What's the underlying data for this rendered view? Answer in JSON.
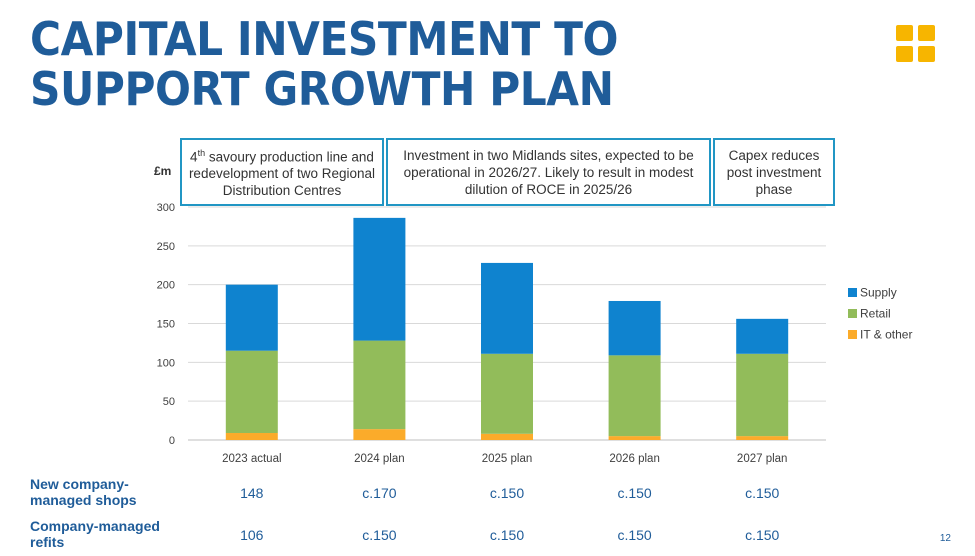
{
  "title": {
    "line1": "CAPITAL INVESTMENT TO",
    "line2": "SUPPORT GROWTH PLAN"
  },
  "callouts": [
    {
      "sup": "th",
      "num": "4",
      "rest": " savoury production line and redevelopment of two Regional Distribution Centres"
    },
    {
      "text": "Investment in two Midlands sites, expected to be operational in 2026/27. Likely to result in modest dilution of ROCE in 2025/26"
    },
    {
      "text": "Capex reduces post investment phase"
    }
  ],
  "colors": {
    "title": "#1f5c99",
    "supply": "#0f83cf",
    "retail": "#92bc5a",
    "it_other": "#fbab2a",
    "callout_border": "#2196c4",
    "logo": "#f7b500"
  },
  "chart_data": {
    "type": "bar",
    "stacked": true,
    "categories": [
      "2023 actual",
      "2024 plan",
      "2025 plan",
      "2026 plan",
      "2027 plan"
    ],
    "series": [
      {
        "name": "IT & other",
        "values": [
          9,
          14,
          8,
          5,
          5
        ]
      },
      {
        "name": "Retail",
        "values": [
          106,
          114,
          103,
          104,
          106
        ]
      },
      {
        "name": "Supply",
        "values": [
          85,
          158,
          117,
          70,
          45
        ]
      }
    ],
    "ylabel": "£m",
    "ylim": [
      0,
      300
    ],
    "yticks": [
      0,
      50,
      100,
      150,
      200,
      250,
      300
    ],
    "grid": true,
    "legend": "right"
  },
  "table": {
    "rows": [
      {
        "label_line1": "New company-",
        "label_line2": "managed shops",
        "values": [
          "148",
          "c.170",
          "c.150",
          "c.150",
          "c.150"
        ]
      },
      {
        "label_line1": "Company-managed",
        "label_line2": "refits",
        "values": [
          "106",
          "c.150",
          "c.150",
          "c.150",
          "c.150"
        ]
      }
    ]
  },
  "page_number": "12"
}
